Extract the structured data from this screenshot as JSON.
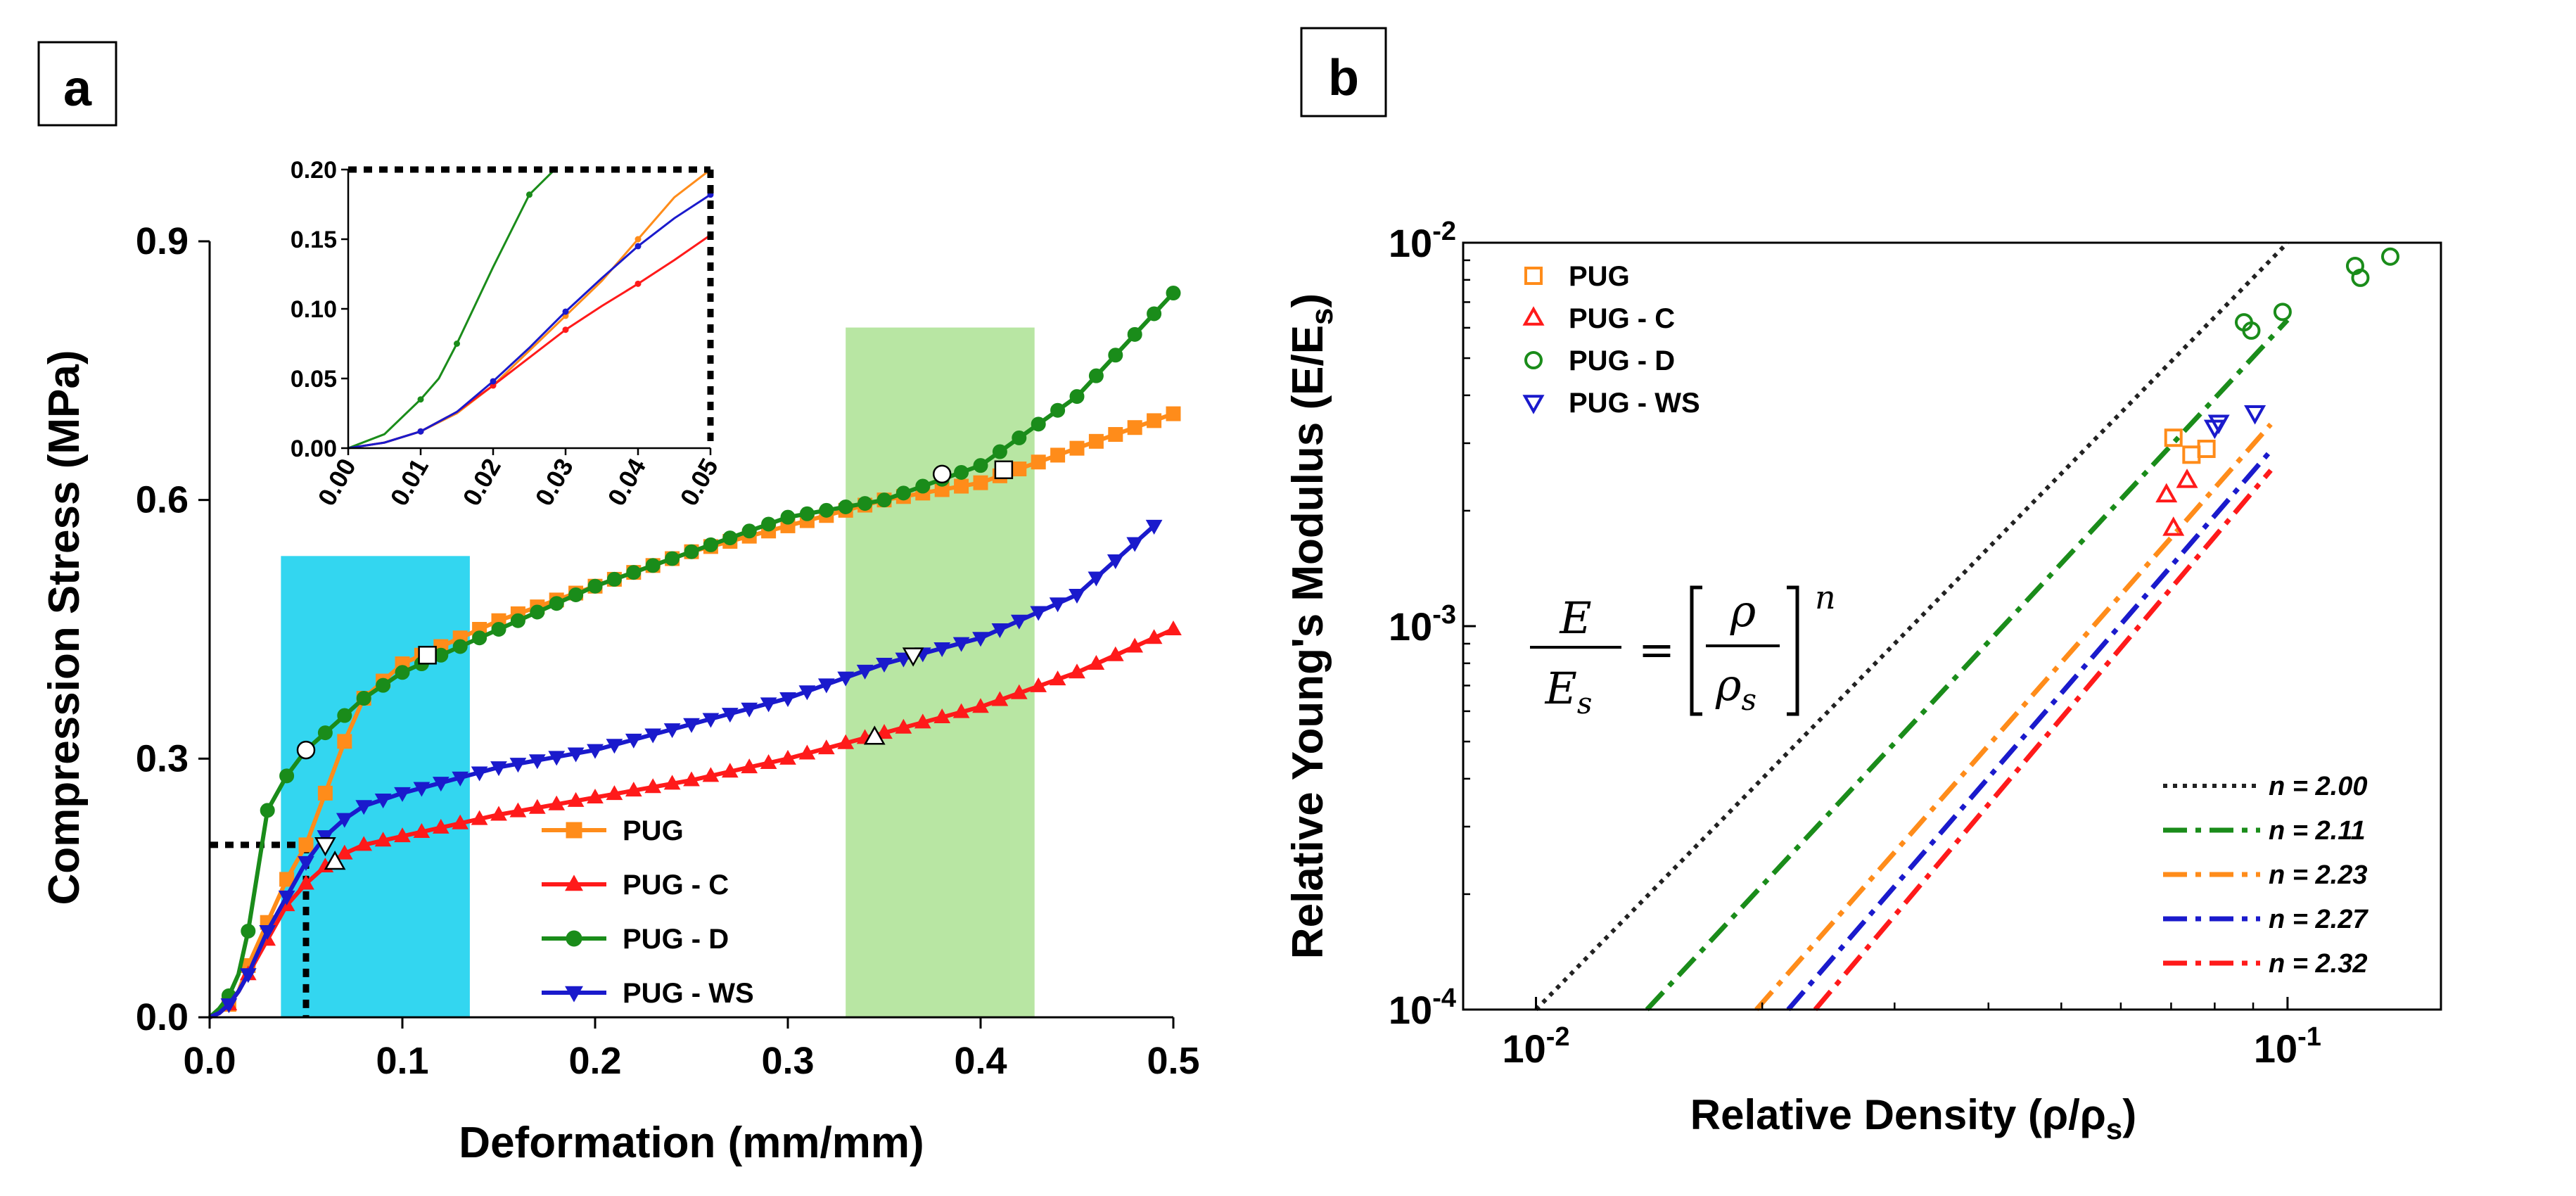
{
  "chart_data": [
    {
      "panel": "a",
      "type": "line",
      "panel_label": "a",
      "xlabel": "Deformation (mm/mm)",
      "ylabel": "Compression Stress (MPa)",
      "xlim": [
        0.0,
        0.5
      ],
      "ylim": [
        0.0,
        0.9
      ],
      "xticks": [
        0.0,
        0.1,
        0.2,
        0.3,
        0.4,
        0.5
      ],
      "xtick_labels": [
        "0.0",
        "0.1",
        "0.2",
        "0.3",
        "0.4",
        "0.5"
      ],
      "yticks": [
        0.0,
        0.3,
        0.6,
        0.9
      ],
      "ytick_labels": [
        "0.0",
        "0.3",
        "0.6",
        "0.9"
      ],
      "legend_position": "bottom-center",
      "shaded_regions": [
        {
          "x0": 0.037,
          "x1": 0.135,
          "y0": 0.0,
          "y1": 0.535,
          "color": "#33d6f0"
        },
        {
          "x0": 0.33,
          "x1": 0.428,
          "y0": 0.0,
          "y1": 0.8,
          "color": "#b8e6a3"
        }
      ],
      "dotted_guide": {
        "x": 0.05,
        "y": 0.2
      },
      "series": [
        {
          "name": "PUG",
          "color": "#ff8c1a",
          "marker": "square",
          "x": [
            0.0,
            0.005,
            0.01,
            0.015,
            0.02,
            0.03,
            0.04,
            0.05,
            0.06,
            0.07,
            0.08,
            0.1,
            0.12,
            0.15,
            0.2,
            0.25,
            0.3,
            0.35,
            0.4,
            0.45,
            0.5
          ],
          "y": [
            0.0,
            0.005,
            0.015,
            0.03,
            0.06,
            0.11,
            0.16,
            0.2,
            0.26,
            0.32,
            0.37,
            0.41,
            0.43,
            0.46,
            0.5,
            0.54,
            0.57,
            0.6,
            0.62,
            0.66,
            0.7
          ]
        },
        {
          "name": "PUG - C",
          "color": "#ff1a1a",
          "marker": "triangle",
          "x": [
            0.0,
            0.005,
            0.01,
            0.015,
            0.02,
            0.03,
            0.04,
            0.05,
            0.06,
            0.07,
            0.08,
            0.1,
            0.15,
            0.2,
            0.25,
            0.3,
            0.35,
            0.4,
            0.45,
            0.5
          ],
          "y": [
            0.0,
            0.005,
            0.015,
            0.03,
            0.05,
            0.09,
            0.13,
            0.155,
            0.175,
            0.19,
            0.2,
            0.21,
            0.235,
            0.255,
            0.275,
            0.3,
            0.33,
            0.36,
            0.4,
            0.45
          ]
        },
        {
          "name": "PUG - D",
          "color": "#1a8c1a",
          "marker": "circle",
          "x": [
            0.0,
            0.005,
            0.01,
            0.015,
            0.02,
            0.025,
            0.03,
            0.04,
            0.05,
            0.06,
            0.07,
            0.08,
            0.1,
            0.15,
            0.2,
            0.25,
            0.3,
            0.35,
            0.4,
            0.45,
            0.5
          ],
          "y": [
            0.0,
            0.01,
            0.025,
            0.05,
            0.1,
            0.17,
            0.24,
            0.28,
            0.31,
            0.33,
            0.35,
            0.37,
            0.4,
            0.45,
            0.5,
            0.54,
            0.58,
            0.6,
            0.64,
            0.72,
            0.84
          ]
        },
        {
          "name": "PUG - WS",
          "color": "#1a1acc",
          "marker": "triangle-down",
          "x": [
            0.0,
            0.005,
            0.01,
            0.015,
            0.02,
            0.03,
            0.04,
            0.05,
            0.06,
            0.07,
            0.08,
            0.1,
            0.15,
            0.2,
            0.25,
            0.3,
            0.35,
            0.4,
            0.45,
            0.49
          ],
          "y": [
            0.0,
            0.005,
            0.015,
            0.03,
            0.05,
            0.1,
            0.14,
            0.18,
            0.21,
            0.23,
            0.245,
            0.26,
            0.29,
            0.31,
            0.34,
            0.37,
            0.41,
            0.44,
            0.49,
            0.57
          ]
        }
      ],
      "open_markers": [
        {
          "series": "PUG",
          "x": 0.113,
          "y": 0.42,
          "shape": "square"
        },
        {
          "series": "PUG",
          "x": 0.412,
          "y": 0.635,
          "shape": "square"
        },
        {
          "series": "PUG - D",
          "x": 0.05,
          "y": 0.31,
          "shape": "circle"
        },
        {
          "series": "PUG - D",
          "x": 0.38,
          "y": 0.63,
          "shape": "circle"
        },
        {
          "series": "PUG - WS",
          "x": 0.06,
          "y": 0.2,
          "shape": "triangle-down"
        },
        {
          "series": "PUG - WS",
          "x": 0.365,
          "y": 0.42,
          "shape": "triangle-down"
        },
        {
          "series": "PUG - C",
          "x": 0.065,
          "y": 0.18,
          "shape": "triangle"
        },
        {
          "series": "PUG - C",
          "x": 0.345,
          "y": 0.325,
          "shape": "triangle"
        }
      ],
      "inset": {
        "xlim": [
          0.0,
          0.05
        ],
        "ylim": [
          0.0,
          0.2
        ],
        "xtick_labels": [
          "0.00",
          "0.01",
          "0.02",
          "0.03",
          "0.04",
          "0.05"
        ],
        "ytick_labels": [
          "0.00",
          "0.05",
          "0.10",
          "0.15",
          "0.20"
        ],
        "xticks": [
          0.0,
          0.01,
          0.02,
          0.03,
          0.04,
          0.05
        ],
        "yticks": [
          0.0,
          0.05,
          0.1,
          0.15,
          0.2
        ],
        "series": [
          {
            "name": "PUG",
            "color": "#ff8c1a",
            "x": [
              0.0,
              0.005,
              0.01,
              0.015,
              0.02,
              0.025,
              0.03,
              0.035,
              0.04,
              0.045,
              0.05
            ],
            "y": [
              0.0,
              0.004,
              0.012,
              0.025,
              0.045,
              0.07,
              0.095,
              0.12,
              0.15,
              0.18,
              0.205
            ]
          },
          {
            "name": "PUG - C",
            "color": "#ff1a1a",
            "x": [
              0.0,
              0.005,
              0.01,
              0.015,
              0.02,
              0.025,
              0.03,
              0.035,
              0.04,
              0.045,
              0.05
            ],
            "y": [
              0.0,
              0.004,
              0.012,
              0.026,
              0.045,
              0.065,
              0.085,
              0.102,
              0.118,
              0.135,
              0.153
            ]
          },
          {
            "name": "PUG - D",
            "color": "#1a8c1a",
            "x": [
              0.0,
              0.005,
              0.01,
              0.0125,
              0.015,
              0.02,
              0.025,
              0.0285
            ],
            "y": [
              0.0,
              0.01,
              0.035,
              0.05,
              0.075,
              0.13,
              0.182,
              0.2
            ]
          },
          {
            "name": "PUG - WS",
            "color": "#1a1acc",
            "x": [
              0.0,
              0.005,
              0.01,
              0.015,
              0.02,
              0.025,
              0.03,
              0.035,
              0.04,
              0.045,
              0.05
            ],
            "y": [
              0.0,
              0.004,
              0.012,
              0.026,
              0.048,
              0.072,
              0.098,
              0.122,
              0.145,
              0.165,
              0.182
            ]
          }
        ]
      }
    },
    {
      "panel": "b",
      "type": "scatter",
      "panel_label": "b",
      "xlabel": "Relative Density (ρ/ρ",
      "xlabel_sub": "s",
      "xlabel_close": ")",
      "ylabel": "Relative Young's Modulus (E/E",
      "ylabel_sub": "s",
      "ylabel_close": ")",
      "xscale": "log",
      "yscale": "log",
      "xlim": [
        0.008,
        0.16
      ],
      "ylim": [
        0.0001,
        0.01
      ],
      "xtick_base": "10",
      "xtick_exps": [
        "-2",
        "-1"
      ],
      "xtick_values": [
        0.01,
        0.1
      ],
      "ytick_base": "10",
      "ytick_exps": [
        "-2",
        "-3",
        "-4"
      ],
      "ytick_values": [
        0.01,
        0.001,
        0.0001
      ],
      "equation": {
        "lhs_num": "E",
        "lhs_den": "E",
        "lhs_den_sub": "s",
        "eq": "=",
        "rhs_num": "ρ",
        "rhs_den": "ρ",
        "rhs_den_sub": "s",
        "exp": "n"
      },
      "marker_legend_position": "top-left",
      "fit_legend_position": "bottom-right",
      "markers": [
        {
          "name": "PUG",
          "color": "#ff8c1a",
          "shape": "square",
          "points": [
            [
              0.0705,
              0.0031
            ],
            [
              0.0745,
              0.0028
            ],
            [
              0.078,
              0.0029
            ]
          ]
        },
        {
          "name": "PUG - C",
          "color": "#ff1a1a",
          "shape": "triangle",
          "points": [
            [
              0.069,
              0.0022
            ],
            [
              0.0705,
              0.0018
            ],
            [
              0.0735,
              0.0024
            ]
          ]
        },
        {
          "name": "PUG - D",
          "color": "#1a8c1a",
          "shape": "circle",
          "points": [
            [
              0.0875,
              0.0062
            ],
            [
              0.0895,
              0.0059
            ],
            [
              0.0985,
              0.0066
            ],
            [
              0.123,
              0.0087
            ],
            [
              0.125,
              0.0081
            ],
            [
              0.137,
              0.0092
            ]
          ]
        },
        {
          "name": "PUG - WS",
          "color": "#1a1acc",
          "shape": "triangle-down",
          "points": [
            [
              0.08,
              0.0033
            ],
            [
              0.081,
              0.0034
            ],
            [
              0.0905,
              0.0036
            ]
          ]
        }
      ],
      "fits": [
        {
          "label": "n = 2.00",
          "n": 2.0,
          "coef": 1.0,
          "x_end": 0.1,
          "color": "#222222",
          "style": "dotted"
        },
        {
          "label": "n = 2.11",
          "n": 2.11,
          "coef": 0.81,
          "x_end": 0.1,
          "color": "#1a8c1a",
          "style": "dashdot"
        },
        {
          "label": "n = 2.23",
          "n": 2.23,
          "coef": 0.64,
          "x_end": 0.095,
          "color": "#ff8c1a",
          "style": "dashdot"
        },
        {
          "label": "n = 2.27",
          "n": 2.27,
          "coef": 0.6,
          "x_end": 0.095,
          "color": "#1a1acc",
          "style": "dashdot"
        },
        {
          "label": "n = 2.32",
          "n": 2.32,
          "coef": 0.6,
          "x_end": 0.095,
          "color": "#ff1a1a",
          "style": "dashdot"
        }
      ]
    }
  ]
}
